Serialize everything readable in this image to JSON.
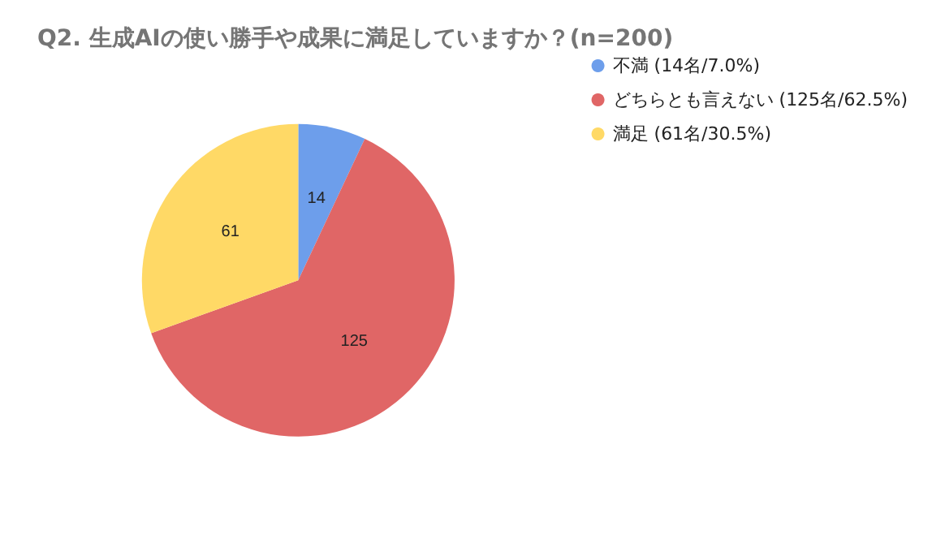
{
  "chart_data": {
    "type": "pie",
    "title": "Q2. 生成AIの使い勝手や成果に満足していますか？(n=200)",
    "categories": [
      "不満 (14名/7.0%)",
      "どちらとも言えない (125名/62.5%)",
      "満足 (61名/30.5%)"
    ],
    "values": [
      14,
      125,
      61
    ],
    "colors": [
      "#6d9eeb",
      "#e06666",
      "#ffd966"
    ],
    "data_labels": true,
    "legend": "top right"
  }
}
